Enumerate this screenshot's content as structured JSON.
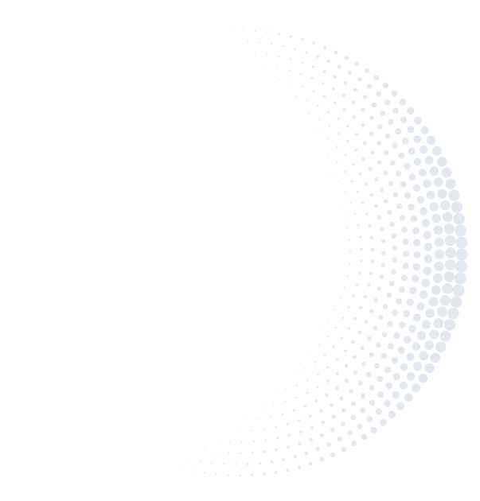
{
  "graphic": {
    "style": "halftone-dot-crescent",
    "dot_color": "#e2e8ef",
    "background": "#ffffff"
  }
}
